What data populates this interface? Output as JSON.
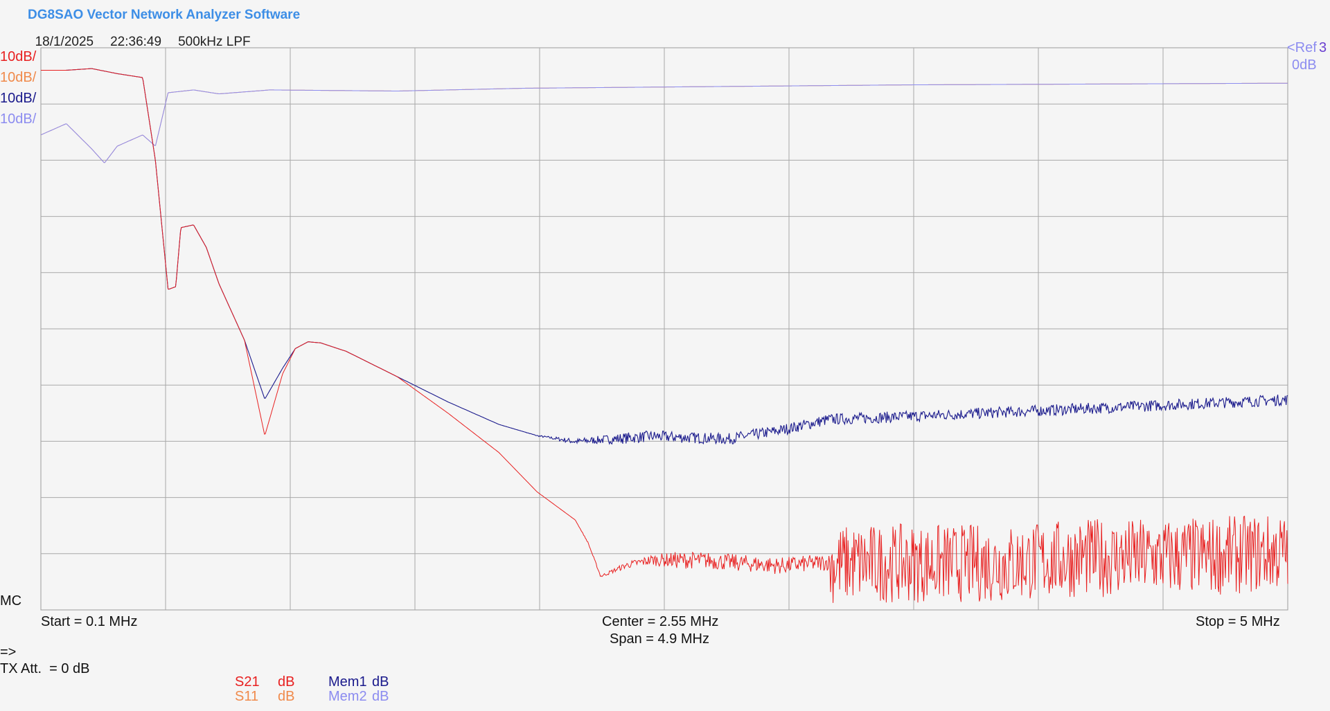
{
  "header": {
    "title": "DG8SAO Vector Network Analyzer Software",
    "date": "18/1/2025",
    "time": "22:36:49",
    "description": "500kHz LPF"
  },
  "scales": [
    {
      "label": "10dB/",
      "color": "#e82020"
    },
    {
      "label": "10dB/",
      "color": "#f08a4b"
    },
    {
      "label": "10dB/",
      "color": "#1a1a8c"
    },
    {
      "label": "10dB/",
      "color": "#8c8cf0"
    }
  ],
  "ref": {
    "label": "<Ref",
    "marker": "3",
    "value": "0dB",
    "color": "#8c8cf0"
  },
  "mc_label": "MC",
  "axis": {
    "start": "Start = 0.1 MHz",
    "center": "Center = 2.55 MHz",
    "span": "Span = 4.9 MHz",
    "stop": "Stop = 5 MHz"
  },
  "status": {
    "prompt": "=>",
    "tx_att": "TX Att.  = 0 dB"
  },
  "legend": {
    "s21": {
      "name": "S21",
      "unit": "dB",
      "color": "#e82020"
    },
    "s11": {
      "name": "S11",
      "unit": "dB",
      "color": "#f08a4b"
    },
    "mem1": {
      "name": "Mem1",
      "unit": "dB",
      "color": "#1a1a8c"
    },
    "mem2": {
      "name": "Mem2",
      "unit": "dB",
      "color": "#8c8cf0"
    }
  },
  "chart_data": {
    "type": "line",
    "xlabel": "",
    "ylabel": "",
    "xlim": [
      0.1,
      5
    ],
    "ylim": [
      -100,
      0
    ],
    "grid": true,
    "series": [
      {
        "name": "S21",
        "color": "#e82020",
        "x": [
          0.1,
          0.2,
          0.3,
          0.4,
          0.5,
          0.55,
          0.6,
          0.63,
          0.65,
          0.7,
          0.75,
          0.8,
          0.9,
          0.98,
          1.05,
          1.1,
          1.15,
          1.2,
          1.3,
          1.5,
          1.7,
          1.9,
          2.05,
          2.2,
          2.25,
          2.3,
          2.4,
          2.5,
          2.7,
          3,
          3.3,
          3.6,
          3.9,
          4.2,
          4.5,
          4.8,
          5
        ],
        "y": [
          -4,
          -4,
          -3.7,
          -4.6,
          -5.3,
          -20,
          -43,
          -42.5,
          -32,
          -31.5,
          -35.5,
          -42,
          -52,
          -69,
          -58,
          -53.5,
          -52.3,
          -52.5,
          -54,
          -58.5,
          -65,
          -72,
          -79,
          -84,
          -88,
          -94,
          -92,
          -91,
          -91,
          -92,
          -91,
          -91,
          -91,
          -90,
          -90,
          -89.5,
          -89
        ]
      },
      {
        "name": "S11",
        "color": "#f08a4b",
        "x": [
          0.1,
          0.2,
          0.3,
          0.35,
          0.4,
          0.5,
          0.55,
          0.6,
          0.7,
          0.8,
          1,
          1.5,
          2,
          2.5,
          3,
          3.5,
          4,
          4.5,
          5
        ],
        "y": [
          -15.5,
          -13.5,
          -18,
          -20.5,
          -17.5,
          -15.5,
          -17.5,
          -8,
          -7.5,
          -8.2,
          -7.5,
          -7.7,
          -7.2,
          -7,
          -6.8,
          -6.6,
          -6.5,
          -6.4,
          -6.3
        ]
      },
      {
        "name": "Mem1",
        "color": "#1a1a8c",
        "x": [
          0.1,
          0.2,
          0.3,
          0.4,
          0.5,
          0.55,
          0.6,
          0.63,
          0.65,
          0.7,
          0.75,
          0.8,
          0.9,
          0.98,
          1.05,
          1.1,
          1.15,
          1.2,
          1.3,
          1.5,
          1.7,
          1.9,
          2.05,
          2.2,
          2.5,
          2.8,
          3,
          3.2,
          3.5,
          4,
          4.5,
          5
        ],
        "y": [
          -4,
          -4,
          -3.7,
          -4.6,
          -5.3,
          -20,
          -43,
          -42.5,
          -32,
          -31.5,
          -35.5,
          -42,
          -52,
          -62.5,
          -57,
          -53.5,
          -52.3,
          -52.5,
          -54,
          -58.5,
          -63,
          -67,
          -69,
          -70,
          -69,
          -69.5,
          -68,
          -66,
          -65.5,
          -64.5,
          -63.5,
          -62.5
        ]
      },
      {
        "name": "Mem2",
        "color": "#8c8cf0",
        "x": [
          0.1,
          0.2,
          0.3,
          0.35,
          0.4,
          0.5,
          0.55,
          0.6,
          0.7,
          0.8,
          1,
          1.5,
          2,
          2.5,
          3,
          3.5,
          4,
          4.5,
          5
        ],
        "y": [
          -15.5,
          -13.5,
          -18,
          -20.5,
          -17.5,
          -15.5,
          -17.5,
          -8,
          -7.5,
          -8.2,
          -7.5,
          -7.7,
          -7.2,
          -7,
          -6.8,
          -6.6,
          -6.5,
          -6.4,
          -6.3
        ]
      }
    ]
  }
}
